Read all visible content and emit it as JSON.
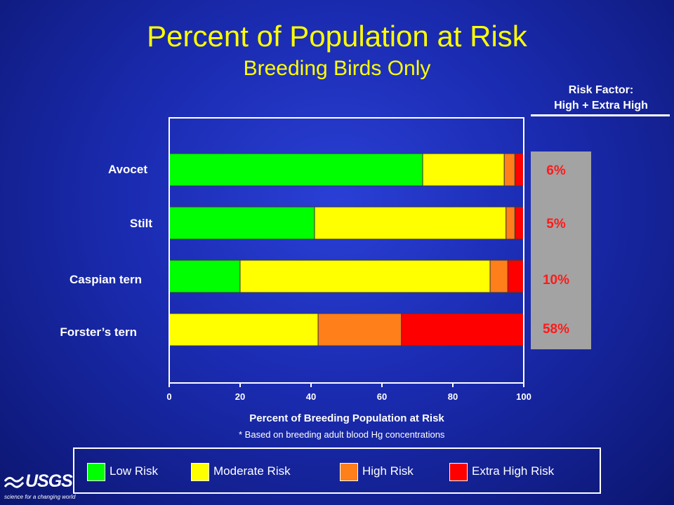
{
  "slide": {
    "title": "Percent of Population at Risk",
    "subtitle": "Breeding Birds Only",
    "risk_factor_header_line1": "Risk Factor:",
    "risk_factor_header_line2": "High + Extra High",
    "risk_factor_values": [
      "6%",
      "5%",
      "10%",
      "58%"
    ],
    "footnote": "* Based on breeding adult blood Hg concentrations",
    "logo_text": "USGS",
    "logo_tagline": "science for a changing world"
  },
  "legend": [
    {
      "label": "Low Risk",
      "color": "#00ff00"
    },
    {
      "label": "Moderate Risk",
      "color": "#ffff00"
    },
    {
      "label": "High Risk",
      "color": "#ff7f1a"
    },
    {
      "label": "Extra High Risk",
      "color": "#ff0000"
    }
  ],
  "chart_data": {
    "type": "bar",
    "orientation": "horizontal",
    "stacked": true,
    "categories": [
      "Avocet",
      "Stilt",
      "Caspian tern",
      "Forster’s tern"
    ],
    "series": [
      {
        "name": "Low Risk",
        "color": "#00ff00",
        "values": [
          71.5,
          41,
          20,
          0
        ]
      },
      {
        "name": "Moderate Risk",
        "color": "#ffff00",
        "values": [
          23,
          54,
          70.5,
          42
        ]
      },
      {
        "name": "High Risk",
        "color": "#ff7f1a",
        "values": [
          3,
          2.5,
          5,
          23.5
        ]
      },
      {
        "name": "Extra High Risk",
        "color": "#ff0000",
        "values": [
          2.5,
          2.5,
          4.5,
          34.5
        ]
      }
    ],
    "xlabel": "Percent of Breeding Population at Risk",
    "ylabel": "",
    "xlim": [
      0,
      100
    ],
    "xticks": [
      0,
      20,
      40,
      60,
      80,
      100
    ],
    "plot_background": "#1a2bb0",
    "grid": false,
    "legend_position": "bottom"
  }
}
